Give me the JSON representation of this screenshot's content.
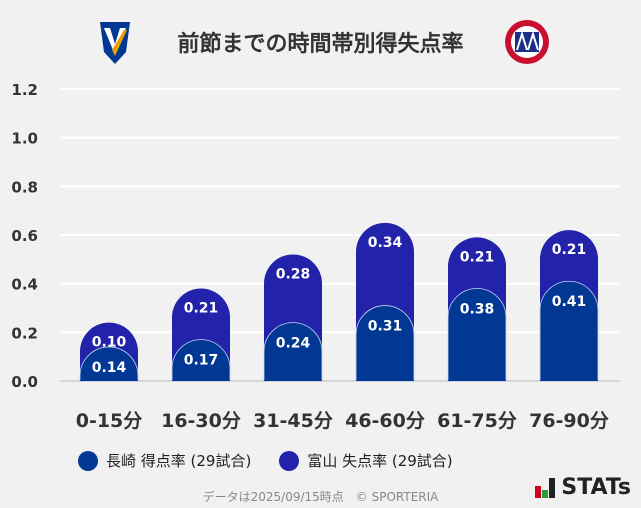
{
  "title": "前節までの時間帯別得失点率",
  "logos": {
    "left": "V-VAREN",
    "right": "KATALLER TOYAMA"
  },
  "legend": [
    {
      "label": "長崎 得点率 (29試合)",
      "color": "#003893"
    },
    {
      "label": "富山 失点率 (29試合)",
      "color": "#2222aa"
    }
  ],
  "footer": "データは2025/09/15時点　© SPORTERIA",
  "brand": "STATs",
  "chart_data": {
    "type": "bar",
    "stacked": true,
    "categories": [
      "0-15分",
      "16-30分",
      "31-45分",
      "46-60分",
      "61-75分",
      "76-90分"
    ],
    "series": [
      {
        "name": "長崎 得点率 (29試合)",
        "values": [
          0.14,
          0.17,
          0.24,
          0.31,
          0.38,
          0.41
        ],
        "color": "#003893"
      },
      {
        "name": "富山 失点率 (29試合)",
        "values": [
          0.1,
          0.21,
          0.28,
          0.34,
          0.21,
          0.21
        ],
        "color": "#2222aa"
      }
    ],
    "yticks": [
      "0.0",
      "0.2",
      "0.4",
      "0.6",
      "0.8",
      "1.0",
      "1.2"
    ],
    "ylim": [
      0,
      1.2
    ],
    "grid": true,
    "legend_position": "bottom"
  }
}
